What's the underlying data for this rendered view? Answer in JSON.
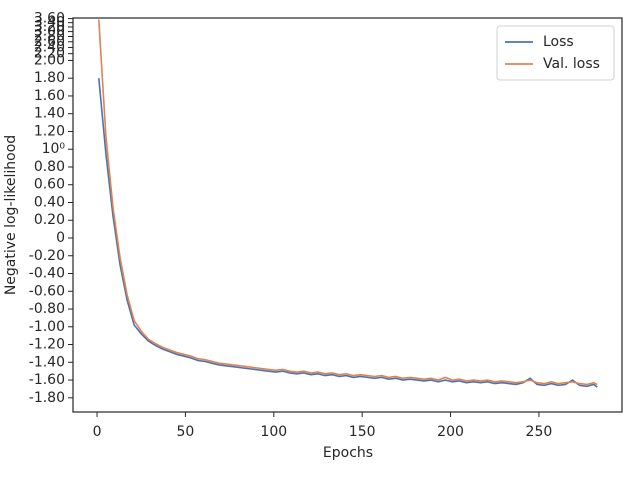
{
  "chart_data": {
    "type": "line",
    "x_label": "Epochs",
    "y_label": "Negative log-likelihood",
    "yscale": "symlog",
    "legend": "upper right",
    "xlim": [
      -13.6,
      297
    ],
    "xticks": [
      0,
      50,
      100,
      150,
      200,
      250
    ],
    "ylim": [
      -1.96,
      3.63
    ],
    "yticks": [
      {
        "value": -1.8,
        "label": "-1.80"
      },
      {
        "value": -1.6,
        "label": "-1.60"
      },
      {
        "value": -1.4,
        "label": "-1.40"
      },
      {
        "value": -1.2,
        "label": "-1.20"
      },
      {
        "value": -1.0,
        "label": "-1.00"
      },
      {
        "value": -0.8,
        "label": "-0.80"
      },
      {
        "value": -0.6,
        "label": "-0.60"
      },
      {
        "value": -0.4,
        "label": "-0.40"
      },
      {
        "value": -0.2,
        "label": "-0.20"
      },
      0,
      {
        "value": 0.2,
        "label": "0.20"
      },
      {
        "value": 0.4,
        "label": "0.40"
      },
      {
        "value": 0.6,
        "label": "0.60"
      },
      {
        "value": 0.8,
        "label": "0.80"
      },
      {
        "value": 1.0,
        "label": "10⁰"
      },
      {
        "value": 1.2,
        "label": "1.20"
      },
      {
        "value": 1.4,
        "label": "1.40"
      },
      {
        "value": 1.6,
        "label": "1.60"
      },
      {
        "value": 1.8,
        "label": "1.80"
      },
      {
        "value": 2.0,
        "label": "2.00"
      },
      {
        "value": 2.2,
        "label": "2.20"
      },
      {
        "value": 2.4,
        "label": "2.40"
      },
      {
        "value": 2.6,
        "label": "2.60"
      },
      {
        "value": 2.8,
        "label": "2.80"
      },
      {
        "value": 3.0,
        "label": "3.00"
      },
      {
        "value": 3.2,
        "label": "3.20"
      },
      {
        "value": 3.4,
        "label": "3.40"
      },
      {
        "value": 3.6,
        "label": "3.60"
      }
    ],
    "x": [
      1,
      5,
      9,
      13,
      17,
      21,
      25,
      29,
      33,
      37,
      41,
      45,
      49,
      53,
      57,
      61,
      65,
      69,
      73,
      77,
      81,
      85,
      89,
      93,
      97,
      101,
      105,
      109,
      113,
      117,
      121,
      125,
      129,
      133,
      137,
      141,
      145,
      149,
      153,
      157,
      161,
      165,
      169,
      173,
      177,
      181,
      185,
      189,
      193,
      197,
      201,
      205,
      209,
      213,
      217,
      221,
      225,
      229,
      233,
      237,
      241,
      245,
      249,
      253,
      257,
      261,
      265,
      269,
      273,
      277,
      281,
      283
    ],
    "series": [
      {
        "name": "Loss",
        "color": "#4c72b0",
        "values": [
          1.8,
          0.95,
          0.25,
          -0.3,
          -0.7,
          -0.98,
          -1.08,
          -1.16,
          -1.21,
          -1.25,
          -1.28,
          -1.31,
          -1.33,
          -1.35,
          -1.38,
          -1.39,
          -1.41,
          -1.43,
          -1.44,
          -1.45,
          -1.46,
          -1.47,
          -1.48,
          -1.49,
          -1.5,
          -1.51,
          -1.5,
          -1.52,
          -1.53,
          -1.52,
          -1.54,
          -1.53,
          -1.55,
          -1.54,
          -1.56,
          -1.55,
          -1.57,
          -1.56,
          -1.57,
          -1.58,
          -1.57,
          -1.59,
          -1.58,
          -1.6,
          -1.59,
          -1.6,
          -1.61,
          -1.6,
          -1.62,
          -1.6,
          -1.62,
          -1.61,
          -1.63,
          -1.62,
          -1.63,
          -1.62,
          -1.64,
          -1.63,
          -1.64,
          -1.65,
          -1.63,
          -1.58,
          -1.65,
          -1.66,
          -1.64,
          -1.66,
          -1.65,
          -1.6,
          -1.66,
          -1.67,
          -1.65,
          -1.68
        ]
      },
      {
        "name": "Val. loss",
        "color": "#dd8452",
        "values": [
          3.55,
          1.15,
          0.35,
          -0.22,
          -0.64,
          -0.93,
          -1.05,
          -1.14,
          -1.19,
          -1.23,
          -1.26,
          -1.29,
          -1.31,
          -1.33,
          -1.36,
          -1.37,
          -1.39,
          -1.41,
          -1.42,
          -1.43,
          -1.44,
          -1.45,
          -1.46,
          -1.47,
          -1.48,
          -1.49,
          -1.48,
          -1.5,
          -1.51,
          -1.5,
          -1.52,
          -1.51,
          -1.53,
          -1.52,
          -1.54,
          -1.53,
          -1.55,
          -1.54,
          -1.55,
          -1.56,
          -1.55,
          -1.57,
          -1.56,
          -1.58,
          -1.57,
          -1.58,
          -1.59,
          -1.58,
          -1.6,
          -1.57,
          -1.6,
          -1.59,
          -1.61,
          -1.6,
          -1.61,
          -1.6,
          -1.62,
          -1.61,
          -1.62,
          -1.63,
          -1.62,
          -1.6,
          -1.63,
          -1.64,
          -1.62,
          -1.64,
          -1.63,
          -1.62,
          -1.64,
          -1.65,
          -1.63,
          -1.65
        ]
      }
    ]
  }
}
